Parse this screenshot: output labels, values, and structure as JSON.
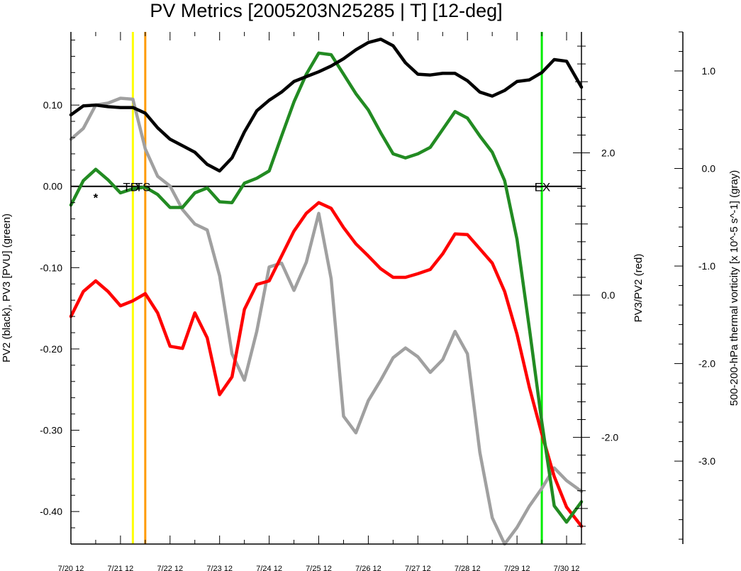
{
  "chart_data": {
    "type": "line",
    "title": "PV Metrics [2005203N25285 | T] [12-deg]",
    "x_tick_labels": [
      "7/20 12",
      "7/21 12",
      "7/22 12",
      "7/23 12",
      "7/24 12",
      "7/25 12",
      "7/26 12",
      "7/27 12",
      "7/28 12",
      "7/29 12",
      "7/30 12"
    ],
    "x_unit": "days from 7/20 12",
    "xlim": [
      0,
      10.3
    ],
    "left_axis": {
      "label": "PV2 (black), PV3 [PVU] (green)",
      "ylim": [
        -0.44,
        0.19
      ],
      "ticks": [
        "0.10",
        "0.00",
        "-0.10",
        "-0.20",
        "-0.30",
        "-0.40"
      ],
      "tick_values": [
        0.1,
        0.0,
        -0.1,
        -0.2,
        -0.3,
        -0.4
      ]
    },
    "middle_axis": {
      "label": "PV3/PV2 (red)",
      "ylim": [
        -3.5,
        3.7
      ],
      "ticks": [
        "2.0",
        "0.0",
        "-2.0"
      ],
      "tick_values": [
        2.0,
        0.0,
        -2.0
      ]
    },
    "right_axis": {
      "label": "500-200-hPa thermal vorticity [x 10^-5 s^-1] (gray)",
      "ylim": [
        -3.85,
        1.4
      ],
      "ticks": [
        "1.0",
        "0.0",
        "-1.0",
        "-2.0",
        "-3.0"
      ],
      "tick_values": [
        1.0,
        0.0,
        -1.0,
        -2.0,
        -3.0
      ]
    },
    "zero_line": 0.0,
    "vertical_lines": [
      {
        "x": 1.25,
        "color": "#ffff00"
      },
      {
        "x": 1.5,
        "color": "#ff9a00"
      },
      {
        "x": 9.5,
        "color": "#00ee00"
      }
    ],
    "annotations": [
      {
        "text": "*",
        "x": 0.5,
        "y": 0.0
      },
      {
        "text": "TD",
        "x": 1.05,
        "y": 0.0
      },
      {
        "text": "TS",
        "x": 1.3,
        "y": 0.0
      },
      {
        "text": "EX",
        "x": 9.35,
        "y": 0.0
      }
    ],
    "series": [
      {
        "axis": "left",
        "color": "#000000",
        "x": [
          0,
          0.25,
          0.5,
          0.75,
          1,
          1.25,
          1.5,
          1.75,
          2,
          2.25,
          2.5,
          2.75,
          3,
          3.25,
          3.5,
          3.75,
          4,
          4.25,
          4.5,
          4.75,
          5,
          5.25,
          5.5,
          5.75,
          6,
          6.25,
          6.5,
          6.75,
          7,
          7.25,
          7.5,
          7.75,
          8,
          8.25,
          8.5,
          8.75,
          9,
          9.25,
          9.5,
          9.75,
          10,
          10.3
        ],
        "y": [
          0.088,
          0.099,
          0.1,
          0.098,
          0.097,
          0.097,
          0.09,
          0.072,
          0.058,
          0.05,
          0.042,
          0.027,
          0.019,
          0.035,
          0.067,
          0.093,
          0.106,
          0.116,
          0.129,
          0.135,
          0.141,
          0.148,
          0.157,
          0.168,
          0.177,
          0.181,
          0.173,
          0.152,
          0.138,
          0.137,
          0.139,
          0.139,
          0.13,
          0.116,
          0.111,
          0.118,
          0.129,
          0.131,
          0.14,
          0.156,
          0.154,
          0.122
        ]
      },
      {
        "axis": "left",
        "color": "#228b22",
        "x": [
          0,
          0.25,
          0.5,
          0.75,
          1,
          1.25,
          1.5,
          1.75,
          2,
          2.25,
          2.5,
          2.75,
          3,
          3.25,
          3.5,
          3.75,
          4,
          4.25,
          4.5,
          4.75,
          5,
          5.25,
          5.5,
          5.75,
          6,
          6.25,
          6.5,
          6.75,
          7,
          7.25,
          7.5,
          7.75,
          8,
          8.25,
          8.5,
          8.75,
          9,
          9.25,
          9.5,
          9.75,
          10,
          10.3
        ],
        "y": [
          -0.023,
          0.007,
          0.021,
          0.008,
          -0.008,
          -0.003,
          -0.001,
          -0.01,
          -0.026,
          -0.026,
          -0.008,
          -0.002,
          -0.019,
          -0.02,
          0.004,
          0.01,
          0.019,
          0.062,
          0.104,
          0.138,
          0.164,
          0.162,
          0.138,
          0.114,
          0.094,
          0.066,
          0.04,
          0.035,
          0.04,
          0.048,
          0.07,
          0.092,
          0.084,
          0.062,
          0.042,
          0.007,
          -0.065,
          -0.175,
          -0.29,
          -0.393,
          -0.413,
          -0.388
        ]
      },
      {
        "axis": "middle",
        "color": "#ff0000",
        "x": [
          0,
          0.25,
          0.5,
          0.75,
          1,
          1.25,
          1.5,
          1.75,
          2,
          2.25,
          2.5,
          2.75,
          3,
          3.25,
          3.5,
          3.75,
          4,
          4.25,
          4.5,
          4.75,
          5,
          5.25,
          5.5,
          5.75,
          6,
          6.25,
          6.5,
          6.75,
          7,
          7.25,
          7.5,
          7.75,
          8,
          8.25,
          8.5,
          8.75,
          9,
          9.25,
          9.5,
          9.75,
          10,
          10.3
        ],
        "y": [
          -0.3,
          0.05,
          0.2,
          0.05,
          -0.15,
          -0.08,
          0.02,
          -0.25,
          -0.72,
          -0.75,
          -0.25,
          -0.6,
          -1.4,
          -1.15,
          -0.2,
          0.15,
          0.2,
          0.55,
          0.9,
          1.15,
          1.3,
          1.22,
          0.95,
          0.72,
          0.55,
          0.37,
          0.25,
          0.25,
          0.3,
          0.36,
          0.58,
          0.86,
          0.85,
          0.65,
          0.45,
          0.05,
          -0.55,
          -1.3,
          -1.95,
          -2.55,
          -2.98,
          -3.25
        ]
      },
      {
        "axis": "right",
        "color": "#a0a0a0",
        "x": [
          0,
          0.25,
          0.5,
          0.75,
          1,
          1.25,
          1.5,
          1.75,
          2,
          2.25,
          2.5,
          2.75,
          3,
          3.25,
          3.5,
          3.75,
          4,
          4.25,
          4.5,
          4.75,
          5,
          5.25,
          5.5,
          5.75,
          6,
          6.25,
          6.5,
          6.75,
          7,
          7.25,
          7.5,
          7.75,
          8,
          8.25,
          8.5,
          8.75,
          9,
          9.25,
          9.5,
          9.75,
          10,
          10.3
        ],
        "y": [
          0.3,
          0.41,
          0.65,
          0.67,
          0.72,
          0.71,
          0.2,
          -0.08,
          -0.18,
          -0.42,
          -0.57,
          -0.63,
          -1.1,
          -1.9,
          -2.17,
          -1.67,
          -1.01,
          -0.97,
          -1.25,
          -0.96,
          -0.46,
          -1.13,
          -2.54,
          -2.71,
          -2.38,
          -2.17,
          -1.94,
          -1.84,
          -1.93,
          -2.09,
          -1.96,
          -1.67,
          -1.9,
          -2.91,
          -3.58,
          -3.85,
          -3.68,
          -3.46,
          -3.28,
          -3.07,
          -3.2,
          -3.31
        ]
      }
    ]
  }
}
